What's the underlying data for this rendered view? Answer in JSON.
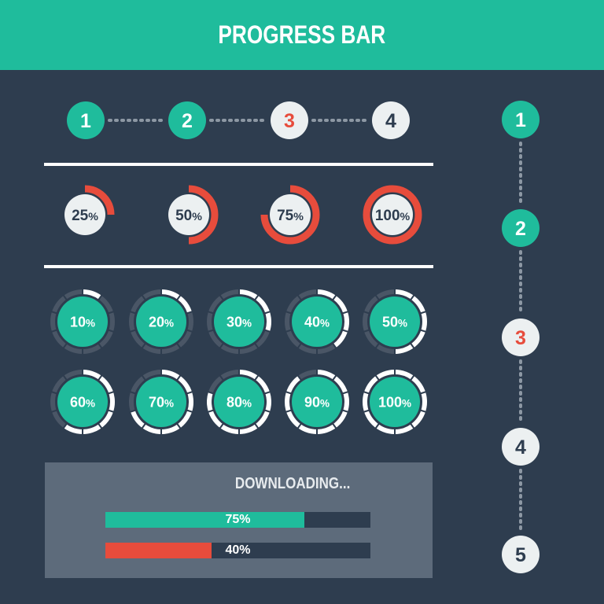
{
  "header": {
    "title": "PROGRESS BAR"
  },
  "colors": {
    "background": "#2e3d4f",
    "accent": "#1fbc9c",
    "alert": "#e74c3c",
    "light": "#ecf0f1",
    "ring_track": "#4a5666",
    "panel": "#5d6b7b"
  },
  "horizontal_steps": {
    "steps": [
      {
        "label": "1",
        "state": "done"
      },
      {
        "label": "2",
        "state": "done"
      },
      {
        "label": "3",
        "state": "current"
      },
      {
        "label": "4",
        "state": "todo"
      }
    ]
  },
  "vertical_steps": {
    "steps": [
      {
        "label": "1",
        "state": "done"
      },
      {
        "label": "2",
        "state": "done"
      },
      {
        "label": "3",
        "state": "current"
      },
      {
        "label": "4",
        "state": "todo"
      },
      {
        "label": "5",
        "state": "todo"
      }
    ]
  },
  "red_rings": [
    {
      "label": "25",
      "unit": "%",
      "value": 25
    },
    {
      "label": "50",
      "unit": "%",
      "value": 50
    },
    {
      "label": "75",
      "unit": "%",
      "value": 75
    },
    {
      "label": "100",
      "unit": "%",
      "value": 100
    }
  ],
  "green_rings": [
    {
      "label": "10",
      "unit": "%",
      "value": 10
    },
    {
      "label": "20",
      "unit": "%",
      "value": 20
    },
    {
      "label": "30",
      "unit": "%",
      "value": 30
    },
    {
      "label": "40",
      "unit": "%",
      "value": 40
    },
    {
      "label": "50",
      "unit": "%",
      "value": 50
    },
    {
      "label": "60",
      "unit": "%",
      "value": 60
    },
    {
      "label": "70",
      "unit": "%",
      "value": 70
    },
    {
      "label": "80",
      "unit": "%",
      "value": 80
    },
    {
      "label": "90",
      "unit": "%",
      "value": 90
    },
    {
      "label": "100",
      "unit": "%",
      "value": 100
    }
  ],
  "download": {
    "title": "DOWNLOADING...",
    "bars": [
      {
        "label": "75%",
        "value": 75,
        "color": "#1fbc9c"
      },
      {
        "label": "40%",
        "value": 40,
        "color": "#e74c3c"
      }
    ]
  }
}
